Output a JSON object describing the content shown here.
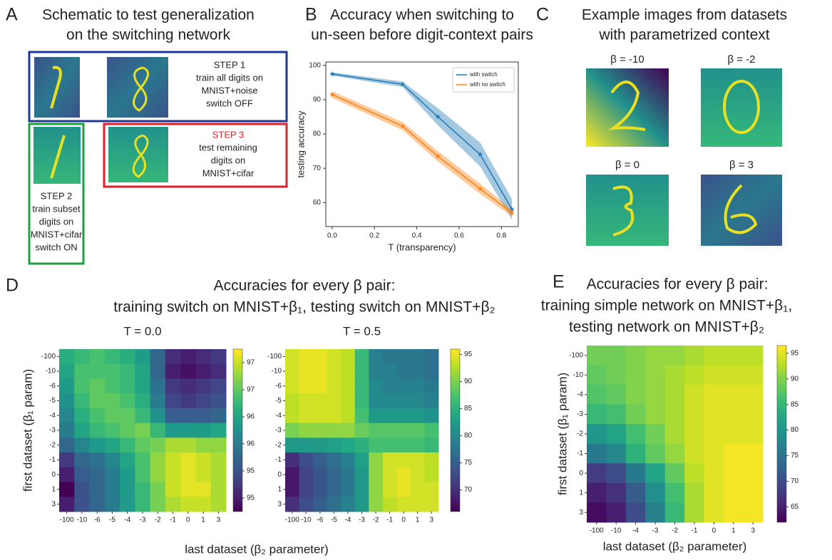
{
  "figure": {
    "A": {
      "letter": "A",
      "title": [
        "Schematic to test generalization",
        "on the switching network"
      ],
      "step1": [
        "STEP 1",
        "train all digits on",
        "MNIST+noise",
        "switch OFF"
      ],
      "step2": [
        "STEP 2",
        "train subset",
        "digits on",
        "MNIST+cifar",
        "switch ON"
      ],
      "step3": [
        "STEP 3",
        "test remaining",
        "digits on",
        "MNIST+cifar"
      ]
    },
    "B": {
      "letter": "B",
      "title": [
        "Accuracy when switching to",
        "un-seen before digit-context pairs"
      ]
    },
    "C": {
      "letter": "C",
      "title": [
        "Example images from datasets",
        "with parametrized context"
      ],
      "images": [
        "β = -10",
        "β = -2",
        "β = 0",
        "β = 3"
      ]
    },
    "D": {
      "letter": "D",
      "title": [
        "Accuracies for every β pair:",
        "training switch on MNIST+β₁, testing switch on MNIST+β₂"
      ],
      "xlabel": "last dataset (β₂ parameter)"
    },
    "E": {
      "letter": "E",
      "title": [
        "Accuracies for every β pair:",
        "training simple network on MNIST+β₁,",
        "testing network on MNIST+β₂"
      ]
    }
  },
  "chart_data": [
    {
      "type": "line",
      "xlabel": "T (transparency)",
      "ylabel": "testing accuracy",
      "x": [
        0,
        0.333,
        0.5,
        0.7,
        0.85
      ],
      "series": [
        {
          "name": "with switch",
          "color": "#1f77b4",
          "values": [
            97.5,
            94.5,
            85,
            74,
            58
          ],
          "errors": [
            0.5,
            0.8,
            2.5,
            3.5,
            3
          ]
        },
        {
          "name": "with no switch",
          "color": "#ff7f0e",
          "values": [
            91.5,
            82.3,
            73.5,
            64,
            57
          ],
          "errors": [
            1,
            1.2,
            1.5,
            1.5,
            1
          ]
        }
      ],
      "xlim": [
        -0.03,
        0.88
      ],
      "ylim": [
        53,
        101
      ],
      "xticks": [
        {
          "value": 0,
          "label": "0.0"
        },
        0.2,
        0.4,
        0.6,
        0.8
      ],
      "yticks": [
        60,
        70,
        80,
        90,
        100
      ],
      "legend": "upper right"
    },
    {
      "type": "heatmap",
      "title": "T = 0.0",
      "ylabel": "first dataset (β₁ param)",
      "colormap": "viridis",
      "x_categories": [
        "-100",
        "-10",
        "-6",
        "-5",
        "-4",
        "-3",
        "-2",
        "-1",
        "0",
        "1",
        "3"
      ],
      "y_categories": [
        "-100",
        "-10",
        "-6",
        "-5",
        "-4",
        "-3",
        "-2",
        "-1",
        "0",
        "1",
        "3"
      ],
      "values": [
        [
          96.3,
          96.4,
          96.5,
          96.4,
          96.3,
          96.1,
          95.6,
          95.1,
          95.0,
          95.1,
          95.2
        ],
        [
          96.2,
          96.5,
          96.5,
          96.5,
          96.4,
          96.2,
          95.6,
          95.0,
          94.9,
          95.0,
          95.1
        ],
        [
          96.1,
          96.5,
          96.6,
          96.5,
          96.4,
          96.2,
          95.7,
          95.2,
          95.1,
          95.2,
          95.3
        ],
        [
          96.0,
          96.4,
          96.6,
          96.6,
          96.5,
          96.3,
          95.8,
          95.3,
          95.2,
          95.3,
          95.4
        ],
        [
          95.9,
          96.3,
          96.5,
          96.6,
          96.6,
          96.4,
          96.0,
          95.5,
          95.5,
          95.5,
          95.6
        ],
        [
          95.8,
          96.2,
          96.4,
          96.5,
          96.6,
          96.7,
          96.4,
          96.1,
          96.1,
          96.1,
          96.2
        ],
        [
          95.6,
          95.9,
          96.1,
          96.2,
          96.4,
          96.6,
          96.7,
          96.9,
          96.9,
          96.8,
          96.8
        ],
        [
          95.2,
          95.6,
          95.7,
          95.9,
          96.2,
          96.5,
          96.8,
          97.0,
          97.1,
          97.0,
          96.9
        ],
        [
          95.0,
          95.5,
          95.6,
          95.8,
          96.1,
          96.5,
          96.8,
          97.0,
          97.1,
          97.0,
          96.9
        ],
        [
          94.8,
          95.4,
          95.6,
          95.8,
          96.1,
          96.4,
          96.7,
          97.0,
          97.1,
          97.1,
          96.9
        ],
        [
          95.0,
          95.4,
          95.6,
          95.8,
          96.1,
          96.4,
          96.7,
          96.9,
          97.0,
          97.0,
          96.9
        ]
      ],
      "vlim": [
        94.8,
        97.2
      ],
      "cticks": [
        {
          "value": 97.0,
          "label": "97"
        },
        {
          "value": 96.6,
          "label": "97"
        },
        {
          "value": 96.2,
          "label": "96"
        },
        {
          "value": 95.8,
          "label": "96"
        },
        {
          "value": 95.4,
          "label": "95"
        },
        {
          "value": 95.0,
          "label": "95"
        }
      ]
    },
    {
      "type": "heatmap",
      "title": "T = 0.5",
      "colormap": "viridis",
      "x_categories": [
        "-100",
        "-10",
        "-6",
        "-5",
        "-4",
        "-3",
        "-2",
        "-1",
        "0",
        "1",
        "3"
      ],
      "y_categories": [
        "-100",
        "-10",
        "-6",
        "-5",
        "-4",
        "-3",
        "-2",
        "-1",
        "0",
        "1",
        "3"
      ],
      "values": [
        [
          94,
          95,
          95,
          94,
          93,
          86,
          79,
          78,
          78,
          78,
          77
        ],
        [
          94,
          95,
          95,
          94,
          93,
          86,
          79,
          79,
          78,
          78,
          77
        ],
        [
          94,
          95,
          95,
          94,
          93,
          86,
          80,
          79,
          79,
          79,
          78
        ],
        [
          93,
          94,
          94,
          94,
          93,
          86,
          80,
          80,
          80,
          80,
          79
        ],
        [
          93,
          94,
          94,
          94,
          93,
          87,
          82,
          82,
          82,
          82,
          81
        ],
        [
          90,
          91,
          91,
          91,
          91,
          89,
          88,
          88,
          88,
          88,
          87
        ],
        [
          82,
          82,
          82,
          83,
          84,
          85,
          87,
          87,
          87,
          87,
          86
        ],
        [
          70,
          73,
          75,
          77,
          79,
          83,
          91,
          94,
          94,
          94,
          93
        ],
        [
          68,
          72,
          74,
          76,
          78,
          82,
          91,
          94,
          95,
          94,
          93
        ],
        [
          68,
          72,
          74,
          76,
          78,
          82,
          91,
          94,
          95,
          94,
          94
        ],
        [
          70,
          73,
          75,
          77,
          79,
          82,
          91,
          93,
          94,
          94,
          94
        ]
      ],
      "vlim": [
        66,
        96
      ],
      "cticks": [
        70,
        75,
        80,
        85,
        90,
        95
      ]
    },
    {
      "type": "heatmap",
      "ylabel": "first dataset (β₁ param)",
      "xlabel": "last dataset (β₂ parameter)",
      "colormap": "viridis",
      "x_categories": [
        "-100",
        "-10",
        "-4",
        "-3",
        "-2",
        "-1",
        "0",
        "1",
        "3"
      ],
      "y_categories": [
        "-100",
        "-10",
        "-4",
        "-3",
        "-2",
        "-1",
        "0",
        "1",
        "3"
      ],
      "values": [
        [
          89,
          89,
          90,
          91,
          91,
          92,
          93,
          93,
          93
        ],
        [
          88,
          89,
          90,
          91,
          92,
          93,
          94,
          94,
          94
        ],
        [
          87,
          88,
          90,
          91,
          92,
          94,
          95,
          95,
          95
        ],
        [
          85,
          86,
          89,
          91,
          92,
          94,
          95,
          95,
          95
        ],
        [
          80,
          82,
          86,
          89,
          92,
          94,
          95,
          95,
          95
        ],
        [
          76,
          78,
          84,
          88,
          91,
          94,
          95,
          96,
          96
        ],
        [
          68,
          70,
          76,
          82,
          88,
          93,
          95,
          96,
          96
        ],
        [
          65,
          67,
          72,
          79,
          86,
          92,
          95,
          96,
          96
        ],
        [
          63,
          65,
          70,
          77,
          85,
          92,
          95,
          96,
          96
        ]
      ],
      "vlim": [
        62,
        96.5
      ],
      "cticks": [
        65,
        70,
        75,
        80,
        85,
        90,
        95
      ]
    }
  ]
}
